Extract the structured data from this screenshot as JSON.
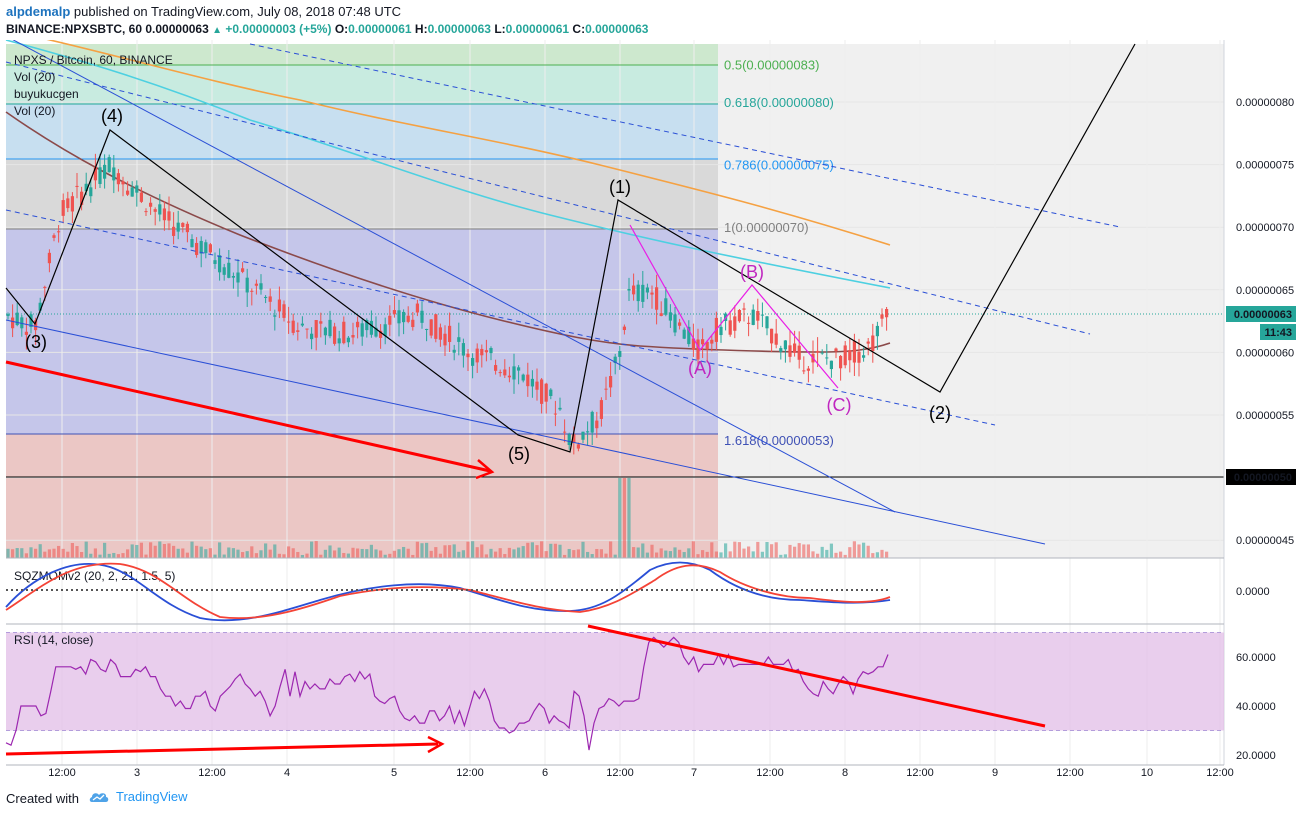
{
  "header": {
    "user": "alpdemalp",
    "published": "published on TradingView.com, July 08, 2018 07:48 UTC",
    "symbol": "BINANCE:NPXSBTC, 60",
    "price": "0.00000063",
    "change": "+0.00000003 (+5%)",
    "o_label": "O:",
    "o_value": "0.00000061",
    "h_label": "H:",
    "h_value": "0.00000063",
    "l_label": "L:",
    "l_value": "0.00000061",
    "c_label": "C:",
    "c_value": "0.00000063"
  },
  "legend": {
    "main": "NPXS / Bitcoin, 60, BINANCE",
    "vol1": "Vol (20)",
    "script": "buyukucgen",
    "vol2": "Vol (20)",
    "sqz": "SQZMOMv2 (20, 2, 21, 1.5, 5)",
    "rsi": "RSI (14, close)"
  },
  "price_badges": {
    "last": "0.00000063",
    "time": "11:43",
    "line": "0.00000050"
  },
  "fib_labels": [
    {
      "text": "0.5(0.00000083)",
      "color": "#4caf50"
    },
    {
      "text": "0.618(0.00000080)",
      "color": "#26a69a"
    },
    {
      "text": "0.786(0.00000075)",
      "color": "#2196f3"
    },
    {
      "text": "1(0.00000070)",
      "color": "#808080"
    },
    {
      "text": "1.618(0.00000053)",
      "color": "#3f51b5"
    }
  ],
  "waves": {
    "w1": "(1)",
    "w2": "(2)",
    "w3": "(3)",
    "w4": "(4)",
    "w5": "(5)",
    "wa": "(A)",
    "wb": "(B)",
    "wc": "(C)"
  },
  "colors": {
    "up": "#26a69a",
    "down": "#ef5350",
    "rsi": "#9c27b0",
    "arrow": "#ff0000",
    "ma_orange": "#f5a142",
    "ma_cyan": "#4dd0e1",
    "ma_brown": "#8b4a4a"
  },
  "footer": {
    "created": "Created with",
    "brand": "TradingView"
  },
  "chart_data": [
    {
      "type": "candlestick",
      "title": "NPXS / Bitcoin, 60, BINANCE",
      "y_axis_ticks": [
        "0.00000080",
        "0.00000075",
        "0.00000070",
        "0.00000065",
        "0.00000060",
        "0.00000055",
        "0.00000050",
        "0.00000045"
      ],
      "y_axis_values": [
        8e-07,
        7.5e-07,
        7e-07,
        6.5e-07,
        6e-07,
        5.5e-07,
        5e-07,
        4.5e-07
      ],
      "x_axis_ticks": [
        "12:00",
        "3",
        "12:00",
        "4",
        "5",
        "12:00",
        "6",
        "12:00",
        "7",
        "12:00",
        "8",
        "12:00",
        "9",
        "12:00",
        "10",
        "12:00"
      ],
      "last_price": 6.3e-07,
      "high_line": 5e-07,
      "ylim": [
        4.3e-07,
        8.5e-07
      ],
      "fibonacci_levels": [
        {
          "ratio": 0.5,
          "price": 8.3e-07
        },
        {
          "ratio": 0.618,
          "price": 8e-07
        },
        {
          "ratio": 0.786,
          "price": 7.5e-07
        },
        {
          "ratio": 1,
          "price": 7e-07
        },
        {
          "ratio": 1.618,
          "price": 5.3e-07
        }
      ],
      "elliott_wave_points": [
        {
          "label": "(3)",
          "price": 6.3e-07
        },
        {
          "label": "(4)",
          "price": 7.7e-07
        },
        {
          "label": "(5)",
          "price": 5.3e-07
        },
        {
          "label": "(1)",
          "price": 7.2e-07
        },
        {
          "label": "(A)",
          "price": 6.05e-07
        },
        {
          "label": "(B)",
          "price": 6.5e-07
        },
        {
          "label": "(C)",
          "price": 5.7e-07
        },
        {
          "label": "(2)",
          "price": 5.65e-07
        }
      ]
    },
    {
      "type": "line",
      "title": "SQZMOMv2 (20, 2, 21, 1.5, 5)",
      "y_axis_ticks": [
        "0.0000"
      ],
      "y_axis_values": [
        0
      ]
    },
    {
      "type": "line",
      "title": "RSI (14, close)",
      "y_axis_ticks": [
        "60.0000",
        "40.0000",
        "20.0000"
      ],
      "y_axis_values": [
        60,
        40,
        20
      ],
      "band": [
        30,
        70
      ],
      "ylim": [
        18,
        72
      ],
      "series": [
        {
          "values": [
            25,
            24,
            30,
            40,
            40,
            40,
            40,
            36,
            37,
            46,
            56,
            56,
            56,
            56,
            55,
            56,
            53,
            59,
            58,
            55,
            54,
            59,
            57,
            52,
            52,
            52,
            55,
            54,
            56,
            52,
            52,
            47,
            44,
            44,
            40,
            42,
            39,
            39,
            44,
            44,
            46,
            40,
            38,
            44,
            46,
            48,
            51,
            53,
            49,
            47,
            44,
            46,
            42,
            36,
            40,
            48,
            55,
            44,
            54,
            44,
            50,
            47,
            49,
            47,
            47,
            51,
            49,
            49,
            52,
            53,
            50,
            54,
            51,
            53,
            44,
            42,
            41,
            43,
            44,
            38,
            35,
            34,
            36,
            33,
            33,
            38,
            38,
            34,
            36,
            40,
            33,
            38,
            32,
            39,
            46,
            43,
            47,
            42,
            34,
            31,
            31,
            29,
            30,
            33,
            33,
            34,
            38,
            41,
            39,
            33,
            36,
            34,
            33,
            31,
            46,
            44,
            36,
            22,
            33,
            39,
            40,
            43,
            42,
            40,
            42,
            42,
            42,
            43,
            56,
            66,
            68,
            66,
            64,
            66,
            68,
            66,
            60,
            57,
            60,
            54,
            57,
            57,
            57,
            61,
            57,
            61,
            56,
            57,
            57,
            57,
            57,
            57,
            57,
            60,
            57,
            57,
            57,
            59,
            54,
            55,
            50,
            47,
            45,
            44,
            50,
            47,
            45,
            49,
            52,
            50,
            45,
            51,
            54,
            53,
            54,
            56,
            56,
            61
          ]
        }
      ]
    }
  ]
}
